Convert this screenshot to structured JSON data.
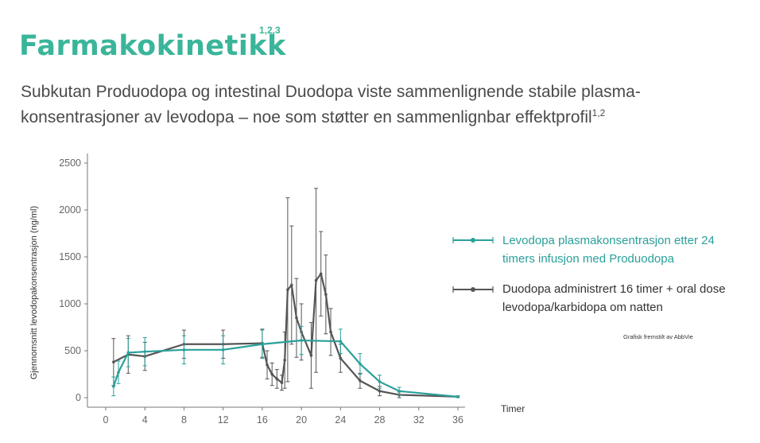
{
  "title": "Farmakokinetikk",
  "title_refs": "1,2,3",
  "subtitle": "Subkutan Produodopa og intestinal Duodopa viste sammenlignende stabile plasma-konsentrasjoner av levodopa – noe som støtter en sammenlignbar effektprofil",
  "subtitle_refs": "1,2",
  "credit": "Grafisk fremstilt av AbbVie",
  "colors": {
    "title": "#3ab59a",
    "series_teal": "#2aa09a",
    "series_gray": "#555555"
  },
  "chart_data": {
    "type": "line",
    "xlabel": "Timer",
    "ylabel": "Gjennomsnitt levodopakonsentrasjon (ng/ml)",
    "xlim": [
      0,
      36
    ],
    "ylim": [
      0,
      2500
    ],
    "xticks": [
      0,
      4,
      8,
      12,
      16,
      20,
      24,
      28,
      32,
      36
    ],
    "yticks": [
      0,
      500,
      1000,
      1500,
      2000,
      2500
    ],
    "grid": false,
    "legend_position": "right",
    "series": [
      {
        "name": "Levodopa plasmakonsentrasjon etter 24 timers infusjon med Produodopa",
        "color": "#2aa09a",
        "x": [
          0.8,
          1.3,
          2.3,
          4.0,
          8.0,
          12.0,
          16.0,
          20.0,
          24.0,
          26.0,
          28.0,
          30.0,
          36.0
        ],
        "y": [
          120,
          270,
          480,
          490,
          510,
          510,
          570,
          610,
          600,
          360,
          170,
          70,
          10
        ],
        "err": [
          100,
          120,
          150,
          150,
          150,
          150,
          150,
          150,
          130,
          110,
          70,
          40,
          10
        ]
      },
      {
        "name": "Duodopa administrert 16 timer + oral dose levodopa/karbidopa  om natten",
        "color": "#555555",
        "x": [
          0.8,
          2.3,
          4.0,
          8.0,
          12.0,
          16.0,
          16.5,
          17.0,
          17.5,
          18.0,
          18.3,
          18.6,
          19.0,
          19.5,
          20.0,
          21.0,
          21.5,
          22.0,
          22.5,
          23.0,
          24.0,
          26.0,
          28.0,
          30.0,
          36.0
        ],
        "y": [
          380,
          460,
          440,
          570,
          570,
          580,
          350,
          250,
          200,
          160,
          400,
          1150,
          1200,
          850,
          700,
          450,
          1250,
          1320,
          1100,
          700,
          420,
          180,
          70,
          30,
          10
        ],
        "err": [
          250,
          200,
          150,
          150,
          150,
          150,
          150,
          120,
          100,
          80,
          300,
          980,
          630,
          420,
          300,
          350,
          980,
          450,
          420,
          250,
          150,
          80,
          50,
          30,
          10
        ]
      }
    ]
  }
}
